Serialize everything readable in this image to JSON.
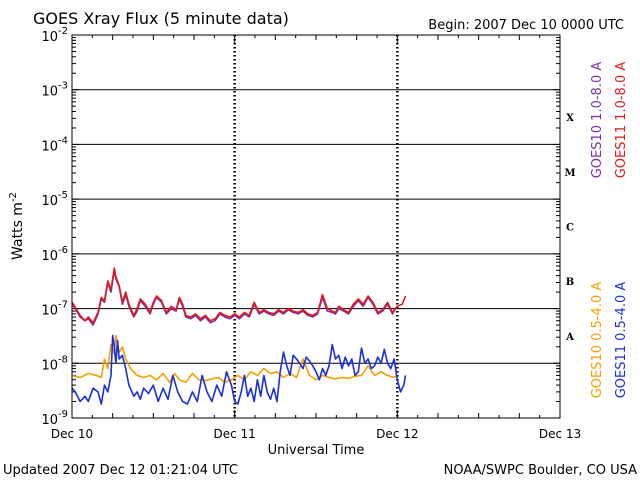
{
  "chart_data": {
    "type": "line",
    "title": "GOES Xray Flux (5 minute data)",
    "begin_label": "Begin:  2007 Dec 10 0000 UTC",
    "ylabel": "Watts m",
    "ylabel_sup": "-2",
    "xlabel": "Universal Time",
    "y_scale": "log",
    "ylim": [
      1e-09,
      0.01
    ],
    "y_ticks": [
      {
        "base": "10",
        "exp": "-2",
        "value": 0.01
      },
      {
        "base": "10",
        "exp": "-3",
        "value": 0.001
      },
      {
        "base": "10",
        "exp": "-4",
        "value": 0.0001
      },
      {
        "base": "10",
        "exp": "-5",
        "value": 1e-05
      },
      {
        "base": "10",
        "exp": "-6",
        "value": 1e-06
      },
      {
        "base": "10",
        "exp": "-7",
        "value": 1e-07
      },
      {
        "base": "10",
        "exp": "-8",
        "value": 1e-08
      },
      {
        "base": "10",
        "exp": "-9",
        "value": 1e-09
      }
    ],
    "xlim_days": [
      0,
      3
    ],
    "x_ticks": [
      {
        "label": "Dec 10",
        "day": 0
      },
      {
        "label": "Dec 11",
        "day": 1
      },
      {
        "label": "Dec 12",
        "day": 2
      },
      {
        "label": "Dec 13",
        "day": 3
      }
    ],
    "grid": "horizontal lines at each decade",
    "flare_classes": [
      {
        "label": "X",
        "lower": 0.0001
      },
      {
        "label": "M",
        "lower": 1e-05
      },
      {
        "label": "C",
        "lower": 1e-06
      },
      {
        "label": "B",
        "lower": 1e-07
      },
      {
        "label": "A",
        "lower": 1e-08
      }
    ],
    "legend": [
      "GOES10 1.0-8.0 A",
      "GOES11 1.0-8.0 A",
      "GOES10 0.5-4.0 A",
      "GOES11 0.5-4.0 A"
    ],
    "series": [
      {
        "name": "GOES10 1.0-8.0 A",
        "color": "#7b2fa8",
        "x_days": [
          0,
          0.02,
          0.05,
          0.08,
          0.1,
          0.13,
          0.16,
          0.18,
          0.2,
          0.22,
          0.24,
          0.26,
          0.27,
          0.29,
          0.31,
          0.33,
          0.35,
          0.38,
          0.4,
          0.42,
          0.45,
          0.48,
          0.5,
          0.52,
          0.55,
          0.58,
          0.61,
          0.64,
          0.66,
          0.68,
          0.7,
          0.73,
          0.76,
          0.79,
          0.82,
          0.85,
          0.88,
          0.91,
          0.94,
          0.97,
          1.0,
          1.03,
          1.06,
          1.09,
          1.12,
          1.15,
          1.18,
          1.21,
          1.24,
          1.27,
          1.3,
          1.33,
          1.36,
          1.39,
          1.42,
          1.45,
          1.48,
          1.51,
          1.54,
          1.57,
          1.6,
          1.62,
          1.64,
          1.67,
          1.7,
          1.73,
          1.76,
          1.79,
          1.82,
          1.85,
          1.88,
          1.91,
          1.94,
          1.97,
          1.99
        ],
        "values": [
          1.2e-07,
          1e-07,
          7e-08,
          6e-08,
          6.5e-08,
          5e-08,
          8e-08,
          1.5e-07,
          1.3e-07,
          3e-07,
          2e-07,
          5e-07,
          3.5e-07,
          2.5e-07,
          1.2e-07,
          1.8e-07,
          1.1e-07,
          7e-08,
          9e-08,
          1.4e-07,
          1.1e-07,
          8e-08,
          1.2e-07,
          1.6e-07,
          1.3e-07,
          8e-08,
          1e-07,
          9e-08,
          1.5e-07,
          1.1e-07,
          7e-08,
          6.5e-08,
          7.5e-08,
          6e-08,
          7e-08,
          5.5e-08,
          6e-08,
          8e-08,
          7e-08,
          6.5e-08,
          7.5e-08,
          6.5e-08,
          8e-08,
          7e-08,
          1.2e-07,
          8e-08,
          9e-08,
          8e-08,
          7.5e-08,
          9e-08,
          8e-08,
          9.5e-08,
          8.5e-08,
          8e-08,
          9e-08,
          7.5e-08,
          7e-08,
          8e-08,
          1.6e-07,
          9e-08,
          8.5e-08,
          8e-08,
          1e-07,
          9e-08,
          8e-08,
          1.1e-07,
          1.4e-07,
          1.1e-07,
          1.6e-07,
          1.2e-07,
          8e-08,
          9e-08,
          1.2e-07,
          8e-08,
          1e-07
        ]
      },
      {
        "name": "GOES11 1.0-8.0 A",
        "color": "#e01a1a",
        "x_days": [
          0,
          0.02,
          0.05,
          0.08,
          0.1,
          0.13,
          0.16,
          0.18,
          0.2,
          0.22,
          0.24,
          0.26,
          0.27,
          0.29,
          0.31,
          0.33,
          0.35,
          0.38,
          0.4,
          0.42,
          0.45,
          0.48,
          0.5,
          0.52,
          0.55,
          0.58,
          0.61,
          0.64,
          0.66,
          0.68,
          0.7,
          0.73,
          0.76,
          0.79,
          0.82,
          0.85,
          0.88,
          0.91,
          0.94,
          0.97,
          1.0,
          1.03,
          1.06,
          1.09,
          1.12,
          1.15,
          1.18,
          1.21,
          1.24,
          1.27,
          1.3,
          1.33,
          1.36,
          1.39,
          1.42,
          1.45,
          1.48,
          1.51,
          1.54,
          1.57,
          1.6,
          1.62,
          1.64,
          1.67,
          1.7,
          1.73,
          1.76,
          1.79,
          1.82,
          1.85,
          1.88,
          1.91,
          1.94,
          1.97,
          2.0,
          2.03,
          2.05
        ],
        "values": [
          1.3e-07,
          1.05e-07,
          7.5e-08,
          6e-08,
          7e-08,
          5.5e-08,
          8.5e-08,
          1.6e-07,
          1.4e-07,
          3.2e-07,
          2.2e-07,
          5.5e-07,
          3.8e-07,
          2.6e-07,
          1.3e-07,
          2e-07,
          1.2e-07,
          7.5e-08,
          1e-07,
          1.5e-07,
          1.2e-07,
          8.5e-08,
          1.3e-07,
          1.7e-07,
          1.4e-07,
          8.5e-08,
          1.1e-07,
          9.5e-08,
          1.6e-07,
          1.2e-07,
          7.5e-08,
          7e-08,
          8e-08,
          6.5e-08,
          7.5e-08,
          6e-08,
          6.5e-08,
          8.5e-08,
          7.5e-08,
          7e-08,
          8e-08,
          7e-08,
          8.5e-08,
          7.5e-08,
          1.3e-07,
          8.5e-08,
          9.5e-08,
          8.5e-08,
          8e-08,
          9.5e-08,
          8.5e-08,
          1e-07,
          9e-08,
          8.5e-08,
          9.5e-08,
          8e-08,
          7.5e-08,
          8.5e-08,
          1.8e-07,
          1e-07,
          9e-08,
          8.5e-08,
          1.1e-07,
          9.5e-08,
          8.5e-08,
          1.2e-07,
          1.5e-07,
          1.2e-07,
          1.7e-07,
          1.3e-07,
          8.5e-08,
          9.5e-08,
          1.3e-07,
          8.5e-08,
          1.1e-07,
          1.2e-07,
          1.7e-07
        ]
      },
      {
        "name": "GOES10 0.5-4.0 A",
        "color": "#f5a000",
        "x_days": [
          0,
          0.05,
          0.1,
          0.15,
          0.18,
          0.2,
          0.22,
          0.24,
          0.26,
          0.27,
          0.29,
          0.31,
          0.33,
          0.36,
          0.4,
          0.44,
          0.48,
          0.52,
          0.56,
          0.6,
          0.63,
          0.66,
          0.7,
          0.74,
          0.78,
          0.82,
          0.86,
          0.9,
          0.94,
          0.98,
          1.02,
          1.06,
          1.1,
          1.14,
          1.18,
          1.22,
          1.26,
          1.3,
          1.34,
          1.38,
          1.42,
          1.46,
          1.5,
          1.54,
          1.58,
          1.62,
          1.66,
          1.7,
          1.74,
          1.78,
          1.82,
          1.86,
          1.9,
          1.94,
          1.98,
          2.0
        ],
        "values": [
          6e-09,
          5.5e-09,
          6.5e-09,
          6e-09,
          5.5e-09,
          1.2e-08,
          8e-09,
          2.2e-08,
          1.5e-08,
          3.2e-08,
          1.6e-08,
          2e-08,
          1.2e-08,
          8e-09,
          6e-09,
          5.5e-09,
          6e-09,
          5e-09,
          6.5e-09,
          4.5e-09,
          6.5e-09,
          5e-09,
          4.5e-09,
          6.5e-09,
          5e-09,
          4.8e-09,
          5.2e-09,
          5.5e-09,
          4.5e-09,
          5e-09,
          6e-09,
          5e-09,
          7e-09,
          6e-09,
          8e-09,
          6.5e-09,
          7e-09,
          5.5e-09,
          6.5e-09,
          5.5e-09,
          1.2e-08,
          6e-09,
          5e-09,
          6e-09,
          5.5e-09,
          5.2e-09,
          5.5e-09,
          5.3e-09,
          5.8e-09,
          6e-09,
          9e-09,
          6e-09,
          7e-09,
          6e-09,
          5.5e-09,
          6e-09
        ]
      },
      {
        "name": "GOES11 0.5-4.0 A",
        "color": "#1a2fe0",
        "x_days": [
          0,
          0.02,
          0.05,
          0.08,
          0.1,
          0.13,
          0.16,
          0.18,
          0.2,
          0.22,
          0.24,
          0.25,
          0.26,
          0.27,
          0.28,
          0.29,
          0.31,
          0.33,
          0.35,
          0.38,
          0.4,
          0.42,
          0.44,
          0.47,
          0.5,
          0.53,
          0.56,
          0.59,
          0.62,
          0.65,
          0.68,
          0.71,
          0.74,
          0.77,
          0.8,
          0.83,
          0.86,
          0.89,
          0.92,
          0.95,
          0.98,
          1.0,
          1.02,
          1.04,
          1.06,
          1.08,
          1.1,
          1.12,
          1.14,
          1.16,
          1.18,
          1.2,
          1.22,
          1.24,
          1.26,
          1.28,
          1.3,
          1.32,
          1.34,
          1.36,
          1.38,
          1.4,
          1.42,
          1.44,
          1.46,
          1.48,
          1.5,
          1.52,
          1.54,
          1.56,
          1.58,
          1.6,
          1.62,
          1.64,
          1.66,
          1.68,
          1.7,
          1.72,
          1.74,
          1.76,
          1.78,
          1.8,
          1.82,
          1.84,
          1.86,
          1.88,
          1.9,
          1.92,
          1.94,
          1.96,
          1.98,
          2.0,
          2.02,
          2.04,
          2.05
        ],
        "values": [
          3.5e-09,
          3e-09,
          2e-09,
          2.5e-09,
          2e-09,
          3.5e-09,
          3e-09,
          1.8e-09,
          4e-09,
          3e-09,
          6e-09,
          3.2e-08,
          2e-08,
          1e-08,
          2.6e-08,
          1.2e-08,
          1.4e-08,
          8e-09,
          4e-09,
          2.5e-09,
          3e-09,
          2.2e-09,
          3.5e-09,
          2.8e-09,
          4e-09,
          2e-09,
          3.5e-09,
          2.2e-09,
          6e-09,
          3e-09,
          2e-09,
          1.8e-09,
          3e-09,
          2e-09,
          6e-09,
          3e-09,
          2e-09,
          4e-09,
          2.5e-09,
          7e-09,
          4e-09,
          2e-09,
          1.8e-09,
          3e-09,
          6e-09,
          2.5e-09,
          3.5e-09,
          2e-09,
          5e-09,
          2.5e-09,
          6e-09,
          3e-09,
          2.2e-09,
          3.5e-09,
          2e-09,
          7e-09,
          1.6e-08,
          9e-09,
          6e-09,
          1.4e-08,
          1.2e-08,
          1e-08,
          8e-09,
          1.3e-08,
          1.1e-08,
          9e-09,
          7e-09,
          5e-09,
          8e-09,
          6e-09,
          9e-09,
          2.2e-08,
          1.2e-08,
          1.4e-08,
          8e-09,
          1.3e-08,
          9e-09,
          1.2e-08,
          6e-09,
          7e-09,
          1.9e-08,
          1e-08,
          1.2e-08,
          8e-09,
          9e-09,
          1.3e-08,
          1e-08,
          1.8e-08,
          1e-08,
          8e-09,
          1.2e-08,
          5e-09,
          3e-09,
          4e-09,
          6e-09
        ]
      }
    ]
  },
  "footer": {
    "updated": "Updated 2007 Dec 12 01:21:04 UTC",
    "credit": "NOAA/SWPC Boulder, CO USA"
  }
}
